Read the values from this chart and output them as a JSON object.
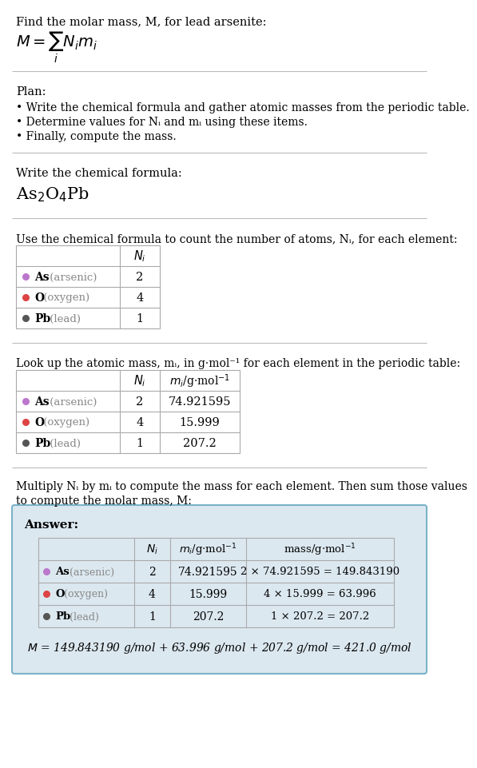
{
  "title_line": "Find the molar mass, M, for lead arsenite:",
  "bg_color": "#ffffff",
  "light_blue_bg": "#dce8f0",
  "answer_border_color": "#7ab3c8",
  "divider_color": "#bbbbbb",
  "table_border_color": "#aaaaaa",
  "plan_header": "Plan:",
  "plan_bullets": [
    "• Write the chemical formula and gather atomic masses from the periodic table.",
    "• Determine values for Nᵢ and mᵢ using these items.",
    "• Finally, compute the mass."
  ],
  "formula_section_label": "Write the chemical formula:",
  "table1_header": "Use the chemical formula to count the number of atoms, Nᵢ, for each element:",
  "table2_header": "Look up the atomic mass, mᵢ, in g·mol⁻¹ for each element in the periodic table:",
  "table3_intro1": "Multiply Nᵢ by mᵢ to compute the mass for each element. Then sum those values",
  "table3_intro2": "to compute the molar mass, M:",
  "elements": [
    "As",
    "O",
    "Pb"
  ],
  "element_names": [
    "arsenic",
    "oxygen",
    "lead"
  ],
  "element_colors": [
    "#bb77cc",
    "#dd4444",
    "#555555"
  ],
  "Ni_values": [
    "2",
    "4",
    "1"
  ],
  "mi_values": [
    "74.921595",
    "15.999",
    "207.2"
  ],
  "mass_calcs": [
    "2 × 74.921595 = 149.843190",
    "4 × 15.999 = 63.996",
    "1 × 207.2 = 207.2"
  ],
  "final_eq": "M = 149.843190 g/mol + 63.996 g/mol + 207.2 g/mol = 421.0 g/mol",
  "answer_label": "Answer:"
}
